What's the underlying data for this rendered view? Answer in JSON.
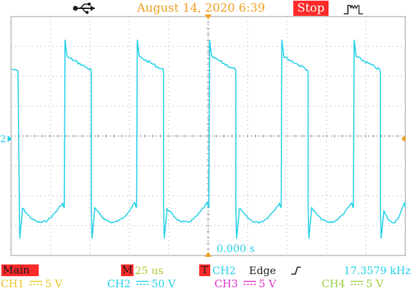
{
  "header": {
    "datetime": "August 14, 2020    6:39",
    "run_state": "Stop",
    "icons": [
      "usb-icon",
      "trigger-pulse-icon"
    ]
  },
  "screen": {
    "channel_marker": "2",
    "trigger_time": "0.000 s",
    "waveform_color": "#22d0e8",
    "grid_color": "#9a9a9a",
    "marker_color": "#f0a020"
  },
  "status": {
    "menu_label": "Main",
    "m_label": "M",
    "timebase": "25 us",
    "t_label": "T",
    "trigger_source": "CH2",
    "trigger_type": "Edge",
    "trigger_slope_icon": "rising-edge-icon",
    "frequency": "17.3579 kHz"
  },
  "channels": [
    {
      "name": "CH1",
      "scale": "5 V",
      "color": "#e6c620"
    },
    {
      "name": "CH2",
      "scale": "50 V",
      "color": "#22d0e8"
    },
    {
      "name": "CH3",
      "scale": "5 V",
      "color": "#e030c8"
    },
    {
      "name": "CH4",
      "scale": "5 V",
      "color": "#9ad040"
    }
  ]
}
